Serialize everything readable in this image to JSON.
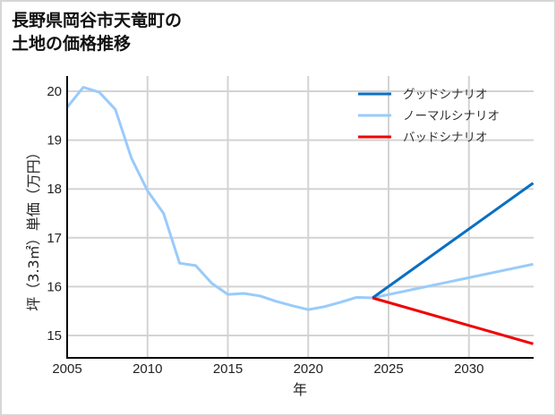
{
  "title": {
    "line1": "長野県岡谷市天竜町の",
    "line2": "土地の価格推移"
  },
  "colors": {
    "good": "#0a6fc2",
    "normal": "#99cbfa",
    "bad": "#f00000",
    "grid": "#d3d3d3",
    "axis": "#000000"
  },
  "chart_data": {
    "type": "line",
    "title": "長野県岡谷市天竜町の土地の価格推移",
    "xlabel": "年",
    "ylabel": "坪（3.3㎡）単価（万円）",
    "xlim": [
      2005,
      2034
    ],
    "ylim": [
      14.55,
      20.3
    ],
    "x_ticks": [
      2005,
      2010,
      2015,
      2020,
      2025,
      2030
    ],
    "y_ticks": [
      15,
      16,
      17,
      18,
      19,
      20
    ],
    "grid": true,
    "legend_position": "upper right",
    "series": [
      {
        "name": "グッドシナリオ",
        "color": "#0a6fc2",
        "x": [
          2024,
          2034
        ],
        "values": [
          15.77,
          18.12
        ]
      },
      {
        "name": "ノーマルシナリオ",
        "color": "#99cbfa",
        "x": [
          2005,
          2006,
          2007,
          2008,
          2009,
          2010,
          2011,
          2012,
          2013,
          2014,
          2015,
          2016,
          2017,
          2018,
          2019,
          2020,
          2021,
          2022,
          2023,
          2024,
          2034
        ],
        "values": [
          19.67,
          20.08,
          19.98,
          19.63,
          18.63,
          17.96,
          17.5,
          16.48,
          16.43,
          16.07,
          15.84,
          15.86,
          15.81,
          15.7,
          15.61,
          15.53,
          15.59,
          15.68,
          15.78,
          15.77,
          16.46
        ]
      },
      {
        "name": "バッドシナリオ",
        "color": "#f00000",
        "x": [
          2024,
          2034
        ],
        "values": [
          15.77,
          14.83
        ]
      }
    ]
  }
}
